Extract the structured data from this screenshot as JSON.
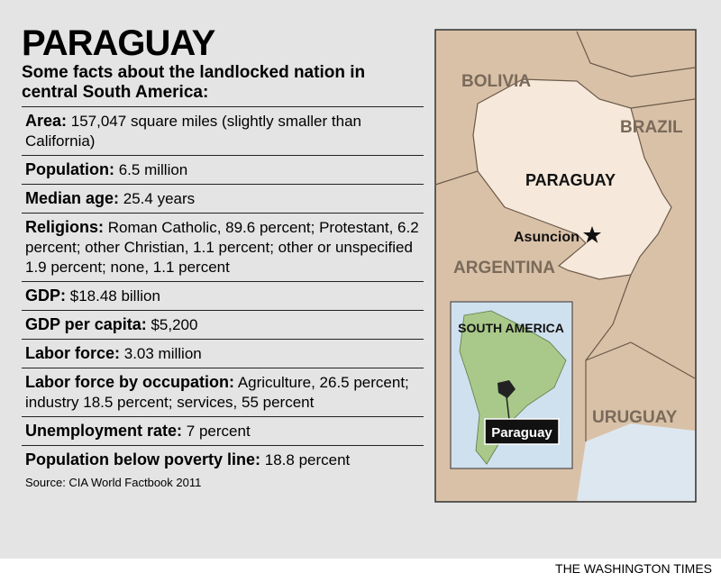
{
  "header": {
    "title": "PARAGUAY",
    "subtitle": "Some facts about the landlocked nation in central South America:"
  },
  "facts": [
    {
      "label": "Area:",
      "text": "157,047 square miles (slightly smaller than California)"
    },
    {
      "label": "Population:",
      "text": "6.5 million"
    },
    {
      "label": "Median age:",
      "text": "25.4 years"
    },
    {
      "label": "Religions:",
      "text": "Roman Catholic, 89.6 percent; Protestant, 6.2 percent; other Christian, 1.1 percent; other or unspecified 1.9 percent; none, 1.1 percent"
    },
    {
      "label": "GDP:",
      "text": "$18.48 billion"
    },
    {
      "label": "GDP per capita:",
      "text": "$5,200"
    },
    {
      "label": "Labor force:",
      "text": "3.03 million"
    },
    {
      "label": "Labor force by occupation:",
      "text": "Agriculture, 26.5 percent; industry 18.5 percent; services, 55 percent"
    },
    {
      "label": "Unemployment rate:",
      "text": "7 percent"
    },
    {
      "label": "Population below poverty line:",
      "text": "18.8 percent"
    }
  ],
  "source": "Source: CIA World Factbook 2011",
  "credit": "THE WASHINGTON TIMES",
  "map": {
    "labels": [
      "BOLIVIA",
      "BRAZIL",
      "PARAGUAY",
      "Asuncion",
      "ARGENTINA",
      "URUGUAY"
    ],
    "inset": {
      "title": "SOUTH AMERICA",
      "label": "Paraguay"
    }
  }
}
